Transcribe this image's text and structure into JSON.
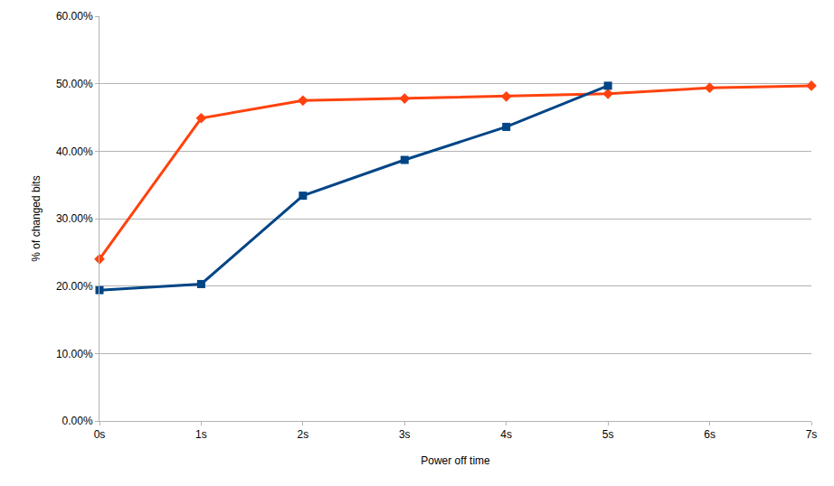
{
  "chart_data": {
    "type": "line",
    "x_label": "Power off time",
    "y_label": "% of changed bits",
    "categories": [
      "0s",
      "1s",
      "2s",
      "3s",
      "4s",
      "5s",
      "6s",
      "7s"
    ],
    "series": [
      {
        "color": "#ff420e",
        "marker": "diamond",
        "values": [
          24.0,
          44.9,
          47.5,
          47.8,
          48.1,
          48.5,
          49.4,
          49.7
        ]
      },
      {
        "color": "#004586",
        "marker": "square",
        "values": [
          19.4,
          20.3,
          33.4,
          38.7,
          43.6,
          49.7,
          null,
          null
        ]
      }
    ],
    "ylim": [
      0,
      60
    ],
    "yticks": [
      {
        "value": 0,
        "label": "0.00%"
      },
      {
        "value": 10,
        "label": "10.00%"
      },
      {
        "value": 20,
        "label": "20.00%"
      },
      {
        "value": 30,
        "label": "30.00%"
      },
      {
        "value": 40,
        "label": "40.00%"
      },
      {
        "value": 50,
        "label": "50.00%"
      },
      {
        "value": 60,
        "label": "60.00%"
      }
    ],
    "grid": true
  }
}
